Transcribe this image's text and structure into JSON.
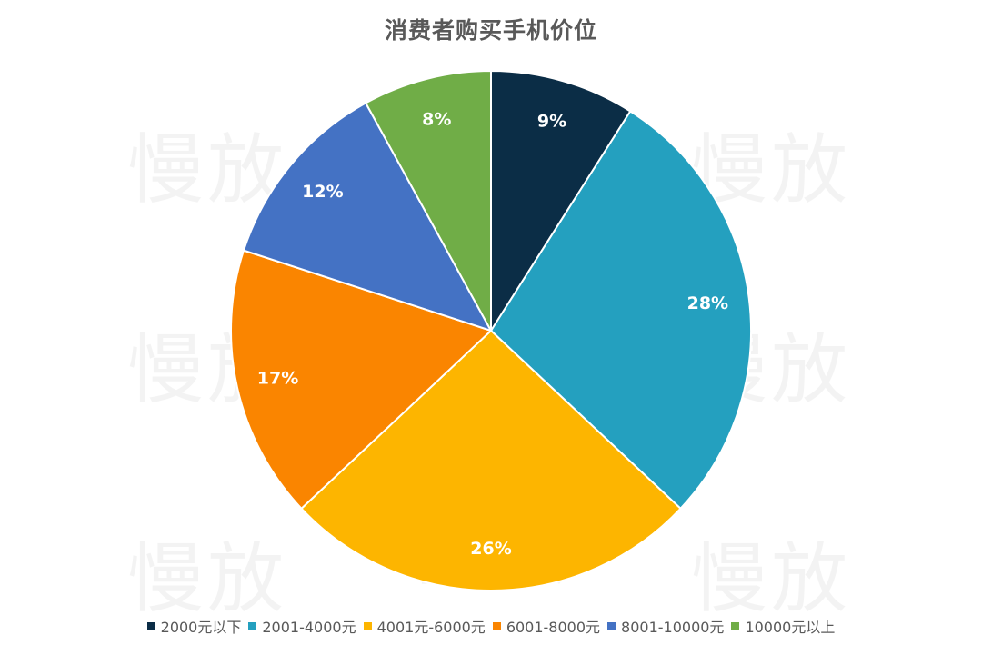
{
  "chart_data": {
    "type": "pie",
    "title": "消费者购买手机价位",
    "categories": [
      "2000元以下",
      "2001-4000元",
      "4001元-6000元",
      "6001-8000元",
      "8001-10000元",
      "10000元以上"
    ],
    "values": [
      9,
      28,
      26,
      17,
      12,
      8
    ],
    "labels": [
      "9%",
      "28%",
      "26%",
      "17%",
      "12%",
      "8%"
    ],
    "colors": [
      "#0b2d46",
      "#24a0bf",
      "#fdb500",
      "#fa8500",
      "#4472c4",
      "#70ad47"
    ],
    "start_angle_deg": 0,
    "direction": "clockwise",
    "legend_position": "bottom"
  },
  "watermark": {
    "text": "慢放"
  }
}
